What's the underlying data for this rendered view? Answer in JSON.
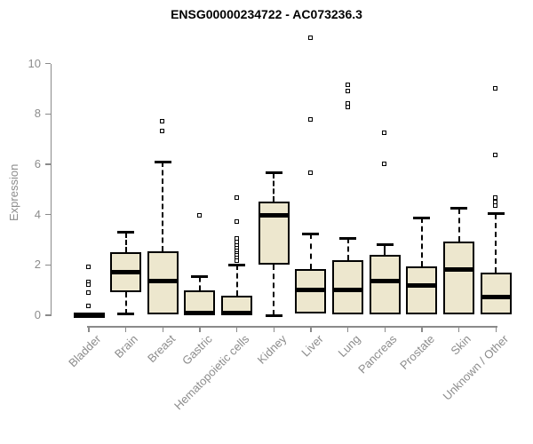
{
  "title": "ENSG00000234722 - AC073236.3",
  "chart_data": {
    "type": "boxplot",
    "title": "ENSG00000234722 - AC073236.3",
    "xlabel": "",
    "ylabel": "Expression",
    "ylim": [
      0,
      11.2
    ],
    "yticks": [
      0,
      2,
      4,
      6,
      8,
      10
    ],
    "grid": false,
    "categories": [
      "Bladder",
      "Brain",
      "Breast",
      "Gastric",
      "Hematopoietic cells",
      "Kidney",
      "Liver",
      "Lung",
      "Pancreas",
      "Prostate",
      "Skin",
      "Unknown / Other"
    ],
    "boxes": [
      {
        "label": "Bladder",
        "low": 0,
        "q1": 0,
        "median": 0.02,
        "q3": 0.05,
        "high": 0.05,
        "outliers": [
          1.9,
          1.3,
          1.2,
          0.9,
          0.35
        ]
      },
      {
        "label": "Brain",
        "low": 0.05,
        "q1": 0.92,
        "median": 1.7,
        "q3": 2.5,
        "high": 3.3,
        "outliers": []
      },
      {
        "label": "Breast",
        "low": 0,
        "q1": 0.02,
        "median": 1.35,
        "q3": 2.53,
        "high": 6.1,
        "outliers": [
          7.7,
          7.3
        ]
      },
      {
        "label": "Gastric",
        "low": 0,
        "q1": 0.02,
        "median": 0.1,
        "q3": 1.0,
        "high": 1.53,
        "outliers": [
          3.95
        ]
      },
      {
        "label": "Hematopoietic cells",
        "low": 0,
        "q1": 0.02,
        "median": 0.1,
        "q3": 0.77,
        "high": 2.0,
        "outliers": [
          4.65,
          3.7,
          3.05,
          2.9,
          2.75,
          2.65,
          2.55,
          2.45,
          2.35,
          2.25,
          2.15
        ]
      },
      {
        "label": "Kidney",
        "low": 0,
        "q1": 2.0,
        "median": 3.98,
        "q3": 4.53,
        "high": 5.65,
        "outliers": []
      },
      {
        "label": "Liver",
        "low": 0.05,
        "q1": 0.07,
        "median": 1.0,
        "q3": 1.85,
        "high": 3.24,
        "outliers": [
          11.0,
          7.75,
          5.65
        ]
      },
      {
        "label": "Lung",
        "low": 0,
        "q1": 0.05,
        "median": 1.02,
        "q3": 2.18,
        "high": 3.06,
        "outliers": [
          9.15,
          8.9,
          8.4,
          8.25
        ]
      },
      {
        "label": "Pancreas",
        "low": 0,
        "q1": 0.05,
        "median": 1.35,
        "q3": 2.41,
        "high": 2.82,
        "outliers": [
          7.25,
          6.0
        ]
      },
      {
        "label": "Prostate",
        "low": 0,
        "q1": 0.05,
        "median": 1.2,
        "q3": 1.94,
        "high": 3.88,
        "outliers": []
      },
      {
        "label": "Skin",
        "low": 0,
        "q1": 0.02,
        "median": 1.82,
        "q3": 2.94,
        "high": 4.24,
        "outliers": []
      },
      {
        "label": "Unknown / Other",
        "low": 0,
        "q1": 0.02,
        "median": 0.74,
        "q3": 1.71,
        "high": 4.03,
        "outliers": [
          9.0,
          6.35,
          4.65,
          4.5,
          4.35
        ]
      }
    ],
    "legend": null,
    "colors": {
      "box_fill": "#ede7ce",
      "box_border": "#000000",
      "median": "#000000",
      "whisker": "#000000",
      "axis": "#8a8a8a",
      "tick_label": "#8c8c8c",
      "title": "#000000",
      "background": "#ffffff"
    }
  }
}
